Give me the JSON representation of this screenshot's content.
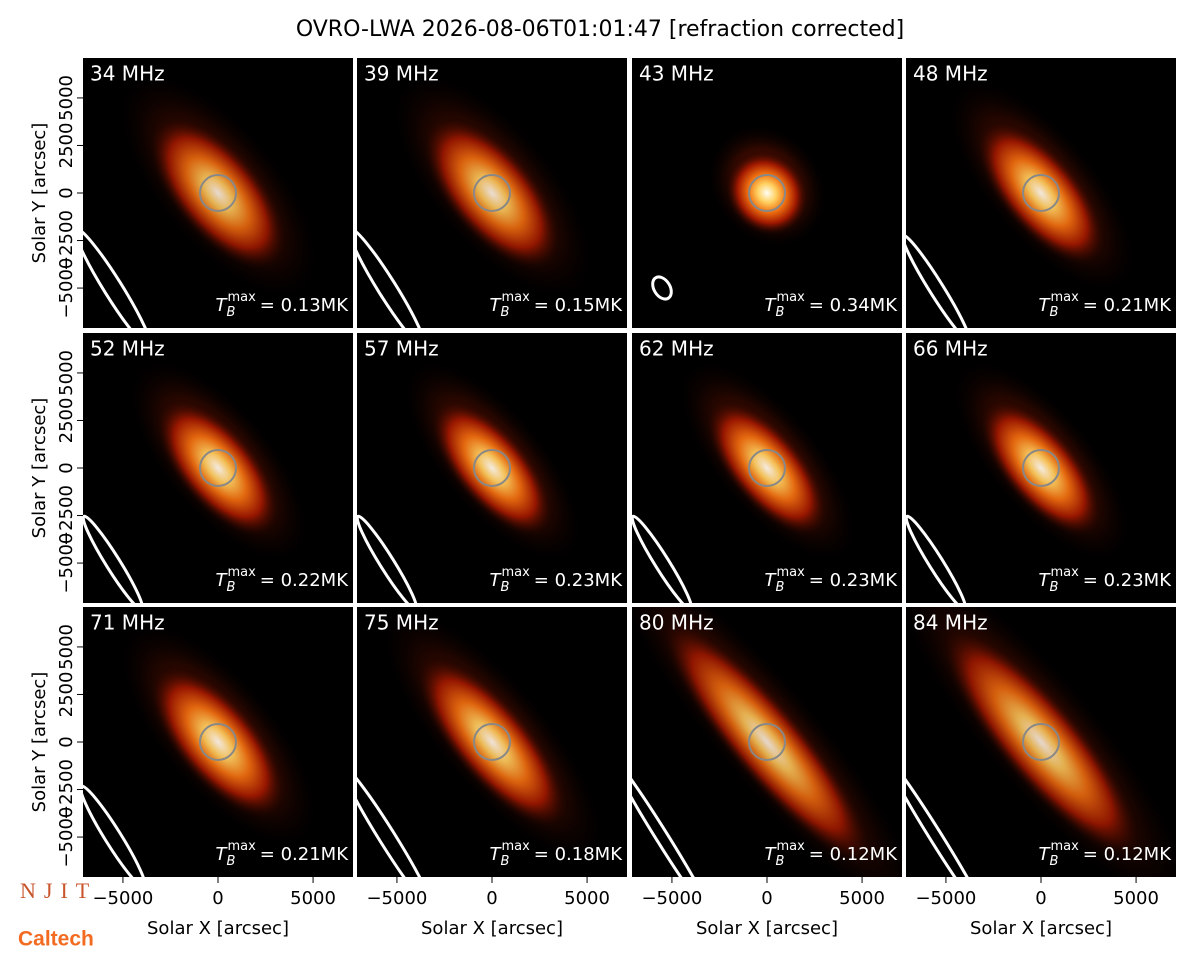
{
  "chart_data": {
    "type": "image-grid",
    "title": "OVRO-LWA 2026-08-06T01:01:47 [refraction corrected]",
    "xlabel": "Solar X [arcsec]",
    "ylabel": "Solar Y [arcsec]",
    "xlim": [
      -7100,
      7100
    ],
    "ylim": [
      -7100,
      7100
    ],
    "xticks": [
      {
        "value": -5000,
        "label": "−5000"
      },
      0,
      5000
    ],
    "yticks": [
      {
        "value": -5000,
        "label": "−5000"
      },
      {
        "value": -2500,
        "label": "−2500"
      },
      0,
      2500,
      5000
    ],
    "tmax_symbol": {
      "base": "T",
      "sub": "B",
      "sup": "max"
    },
    "panels": [
      {
        "freq": "34 MHz",
        "tmax": {
          "value": 0.13,
          "label": "= 0.13MK"
        }
      },
      {
        "freq": "39 MHz",
        "tmax": {
          "value": 0.15,
          "label": "= 0.15MK"
        }
      },
      {
        "freq": "43 MHz",
        "tmax": {
          "value": 0.34,
          "label": "= 0.34MK"
        }
      },
      {
        "freq": "48 MHz",
        "tmax": {
          "value": 0.21,
          "label": "= 0.21MK"
        }
      },
      {
        "freq": "52 MHz",
        "tmax": {
          "value": 0.22,
          "label": "= 0.22MK"
        }
      },
      {
        "freq": "57 MHz",
        "tmax": {
          "value": 0.23,
          "label": "= 0.23MK"
        }
      },
      {
        "freq": "62 MHz",
        "tmax": {
          "value": 0.23,
          "label": "= 0.23MK"
        }
      },
      {
        "freq": "66 MHz",
        "tmax": {
          "value": 0.23,
          "label": "= 0.23MK"
        }
      },
      {
        "freq": "71 MHz",
        "tmax": {
          "value": 0.21,
          "label": "= 0.21MK"
        }
      },
      {
        "freq": "75 MHz",
        "tmax": {
          "value": 0.18,
          "label": "= 0.18MK"
        }
      },
      {
        "freq": "80 MHz",
        "tmax": {
          "value": 0.12,
          "label": "= 0.12MK"
        }
      },
      {
        "freq": "84 MHz",
        "tmax": {
          "value": 0.12,
          "label": "= 0.12MK"
        }
      }
    ],
    "logos": [
      "NJIT",
      "Caltech"
    ]
  }
}
